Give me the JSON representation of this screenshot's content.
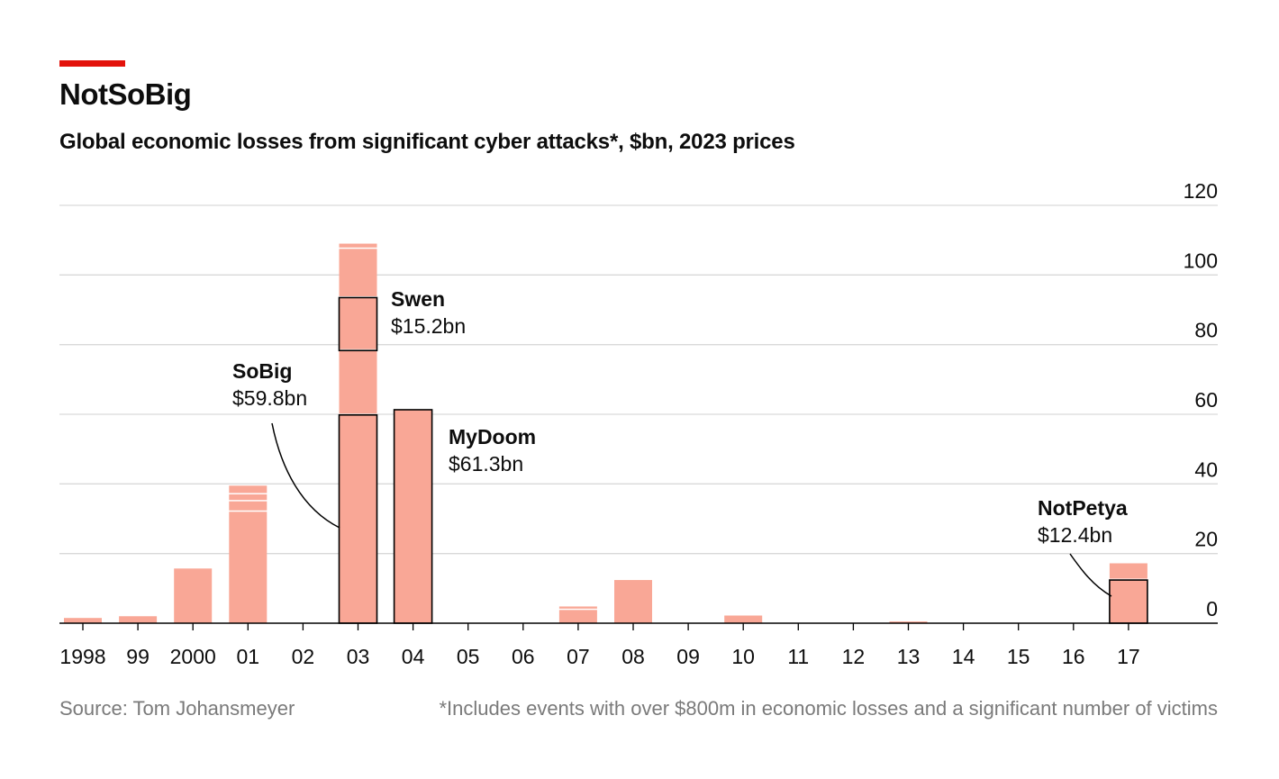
{
  "title": "NotSoBig",
  "subtitle": "Global economic losses from significant cyber attacks*, $bn, 2023 prices",
  "source": "Source: Tom Johansmeyer",
  "footnote": "*Includes events with over $800m in economic losses and a significant number of victims",
  "colors": {
    "accent": "#e3120b",
    "bar": "#f9a796",
    "grid": "#d9d9d9",
    "text": "#0d0d0d",
    "footer": "#7a7a7a"
  },
  "chart_data": {
    "type": "bar",
    "stacked": true,
    "title": "NotSoBig",
    "subtitle": "Global economic losses from significant cyber attacks*, $bn, 2023 prices",
    "xlabel": "",
    "ylabel": "$bn, 2023 prices",
    "ylim": [
      0,
      120
    ],
    "yticks": [
      0,
      20,
      40,
      60,
      80,
      100,
      120
    ],
    "y_axis_side": "right",
    "grid": true,
    "categories": [
      "1998",
      "99",
      "2000",
      "01",
      "02",
      "03",
      "04",
      "05",
      "06",
      "07",
      "08",
      "09",
      "10",
      "11",
      "12",
      "13",
      "14",
      "15",
      "16",
      "17"
    ],
    "bars": [
      {
        "category": "1998",
        "segments": [
          1.5
        ]
      },
      {
        "category": "99",
        "segments": [
          2
        ]
      },
      {
        "category": "2000",
        "segments": [
          15.7
        ]
      },
      {
        "category": "01",
        "segments": [
          32,
          3,
          2,
          2.5
        ]
      },
      {
        "category": "02",
        "segments": []
      },
      {
        "category": "03",
        "segments": [
          59.8,
          18.5,
          15.2,
          14,
          1.5
        ]
      },
      {
        "category": "04",
        "segments": [
          61.3
        ]
      },
      {
        "category": "05",
        "segments": []
      },
      {
        "category": "06",
        "segments": []
      },
      {
        "category": "07",
        "segments": [
          3.8,
          1
        ]
      },
      {
        "category": "08",
        "segments": [
          12.4
        ]
      },
      {
        "category": "09",
        "segments": []
      },
      {
        "category": "10",
        "segments": [
          2.2
        ]
      },
      {
        "category": "11",
        "segments": []
      },
      {
        "category": "12",
        "segments": []
      },
      {
        "category": "13",
        "segments": [
          0.5
        ]
      },
      {
        "category": "14",
        "segments": []
      },
      {
        "category": "15",
        "segments": []
      },
      {
        "category": "16",
        "segments": []
      },
      {
        "category": "17",
        "segments": [
          12.4,
          4.8
        ]
      }
    ],
    "annotations": [
      {
        "name": "SoBig",
        "value": "$59.8bn",
        "category": "03",
        "segment": 0
      },
      {
        "name": "Swen",
        "value": "$15.2bn",
        "category": "03",
        "segment": 2
      },
      {
        "name": "MyDoom",
        "value": "$61.3bn",
        "category": "04",
        "segment": 0
      },
      {
        "name": "NotPetya",
        "value": "$12.4bn",
        "category": "17",
        "segment": 0
      }
    ]
  }
}
